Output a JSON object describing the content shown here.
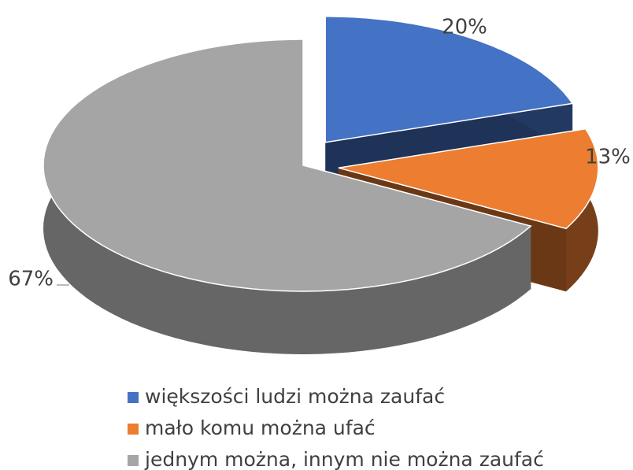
{
  "chart_data": {
    "type": "pie",
    "categories": [
      "większości ludzi można zaufać",
      "mało komu można ufać",
      "jednym można, innym nie można zaufać"
    ],
    "values": [
      20,
      13,
      67
    ],
    "value_labels": [
      "20%",
      "13%",
      "67%"
    ],
    "colors": [
      "#4472c4",
      "#ed7d31",
      "#a5a5a5"
    ],
    "legend": "bottom"
  }
}
